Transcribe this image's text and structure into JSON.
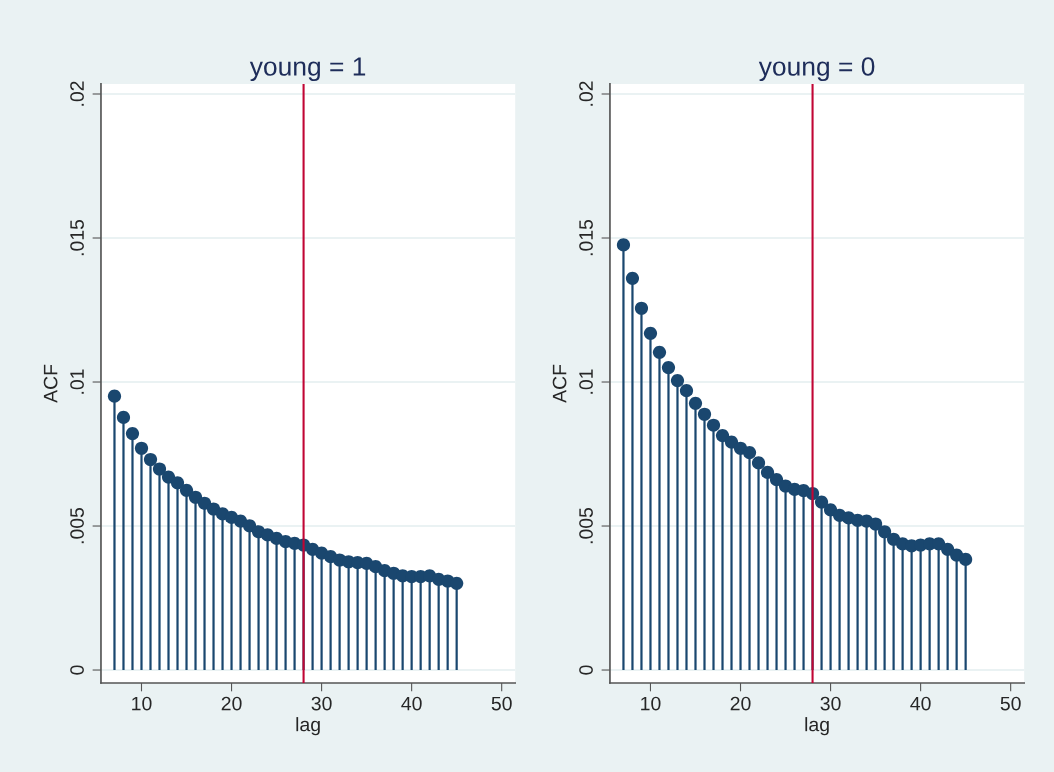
{
  "chart_data": [
    {
      "type": "lollipop",
      "title": "young = 1",
      "xlabel": "lag",
      "ylabel": "ACF",
      "x": [
        7,
        8,
        9,
        10,
        11,
        12,
        13,
        14,
        15,
        16,
        17,
        18,
        19,
        20,
        21,
        22,
        23,
        24,
        25,
        26,
        27,
        28,
        29,
        30,
        31,
        32,
        33,
        34,
        35,
        36,
        37,
        38,
        39,
        40,
        41,
        42,
        43,
        44,
        45
      ],
      "series": [
        {
          "color": "#1a476f",
          "values": [
            0.00951,
            0.00877,
            0.00821,
            0.0077,
            0.00731,
            0.00698,
            0.0067,
            0.0065,
            0.00624,
            0.006,
            0.00579,
            0.00559,
            0.00542,
            0.0053,
            0.00517,
            0.00501,
            0.0048,
            0.00469,
            0.00457,
            0.00446,
            0.0044,
            0.00434,
            0.00419,
            0.00406,
            0.00394,
            0.00382,
            0.00376,
            0.00373,
            0.0037,
            0.00359,
            0.00345,
            0.00336,
            0.00327,
            0.00324,
            0.00324,
            0.00327,
            0.00315,
            0.00309,
            0.00301
          ]
        }
      ],
      "marker": "circle",
      "xlim": [
        5.5,
        51.5
      ],
      "xticks": [
        10,
        20,
        30,
        40,
        50
      ],
      "ylim": [
        -0.00045,
        0.02035
      ],
      "yticks": [
        {
          "value": 0,
          "label": "0"
        },
        {
          "value": 0.005,
          "label": ".005"
        },
        {
          "value": 0.01,
          "label": ".01"
        },
        {
          "value": 0.015,
          "label": ".015"
        },
        {
          "value": 0.02,
          "label": ".02"
        }
      ],
      "ref_lines": [
        {
          "axis": "x",
          "value": 28,
          "color": "#c10534"
        }
      ],
      "grid": "y"
    },
    {
      "type": "lollipop",
      "title": "young = 0",
      "xlabel": "lag",
      "ylabel": "ACF",
      "x": [
        7,
        8,
        9,
        10,
        11,
        12,
        13,
        14,
        15,
        16,
        17,
        18,
        19,
        20,
        21,
        22,
        23,
        24,
        25,
        26,
        27,
        28,
        29,
        30,
        31,
        32,
        33,
        34,
        35,
        36,
        37,
        38,
        39,
        40,
        41,
        42,
        43,
        44,
        45
      ],
      "series": [
        {
          "color": "#1a476f",
          "values": [
            0.01476,
            0.0136,
            0.01256,
            0.01169,
            0.01103,
            0.0105,
            0.01005,
            0.0097,
            0.00926,
            0.00888,
            0.0085,
            0.00814,
            0.00791,
            0.0077,
            0.00755,
            0.00719,
            0.00686,
            0.00661,
            0.00639,
            0.00627,
            0.00623,
            0.00613,
            0.00583,
            0.00556,
            0.00537,
            0.00528,
            0.0052,
            0.00517,
            0.00507,
            0.0048,
            0.00454,
            0.00438,
            0.00431,
            0.00434,
            0.00438,
            0.00438,
            0.00419,
            0.00399,
            0.00384
          ]
        }
      ],
      "marker": "circle",
      "xlim": [
        5.5,
        51.5
      ],
      "xticks": [
        10,
        20,
        30,
        40,
        50
      ],
      "ylim": [
        -0.00045,
        0.02035
      ],
      "yticks": [
        {
          "value": 0,
          "label": "0"
        },
        {
          "value": 0.005,
          "label": ".005"
        },
        {
          "value": 0.01,
          "label": ".01"
        },
        {
          "value": 0.015,
          "label": ".015"
        },
        {
          "value": 0.02,
          "label": ".02"
        }
      ],
      "ref_lines": [
        {
          "axis": "x",
          "value": 28,
          "color": "#c10534"
        }
      ],
      "grid": "y"
    }
  ]
}
